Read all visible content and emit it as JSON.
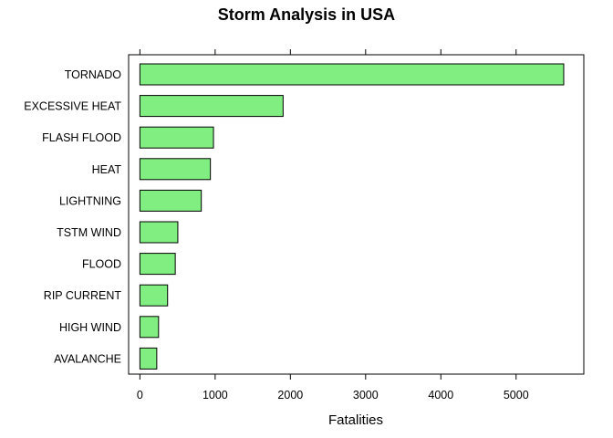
{
  "chart_data": {
    "type": "bar",
    "orientation": "horizontal",
    "title": "Storm Analysis in USA",
    "xlabel": "Fatalities",
    "ylabel": "",
    "categories": [
      "TORNADO",
      "EXCESSIVE HEAT",
      "FLASH FLOOD",
      "HEAT",
      "LIGHTNING",
      "TSTM WIND",
      "FLOOD",
      "RIP CURRENT",
      "HIGH WIND",
      "AVALANCHE"
    ],
    "values": [
      5633,
      1903,
      978,
      937,
      816,
      504,
      470,
      368,
      248,
      224
    ],
    "xlim": [
      -150,
      5900
    ],
    "xticks": [
      0,
      1000,
      2000,
      3000,
      4000,
      5000
    ],
    "bar_color": "#80ee80",
    "bar_edge_color": "#000000",
    "grid": false,
    "legend": "none"
  }
}
